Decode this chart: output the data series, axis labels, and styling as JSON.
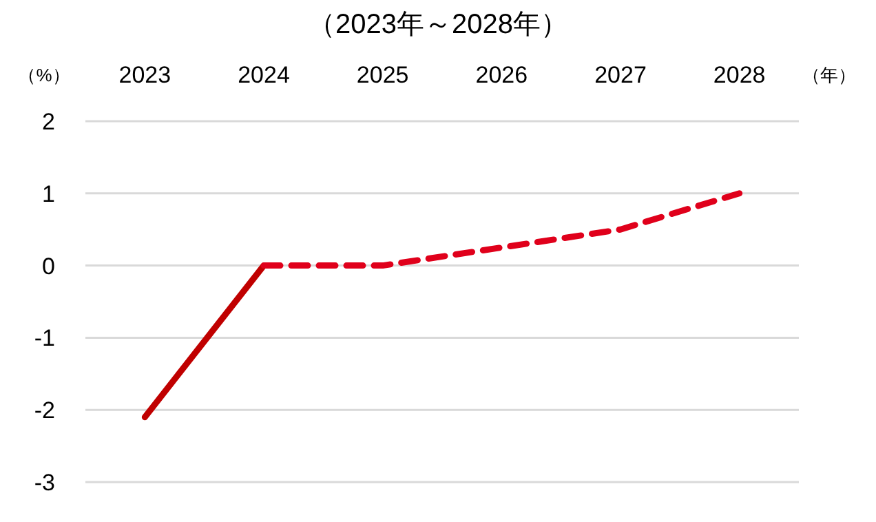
{
  "chart_data": {
    "type": "line",
    "title": "（2023年～2028年）",
    "ylabel": "（%）",
    "xlabel": "（年）",
    "categories": [
      "2023",
      "2024",
      "2025",
      "2026",
      "2027",
      "2028"
    ],
    "series": [
      {
        "color": "#c00000",
        "line_style": "solid",
        "values": [
          -2.1,
          0,
          null,
          null,
          null,
          null
        ]
      },
      {
        "color": "#e0001b",
        "line_style": "dashed",
        "values": [
          null,
          0,
          0,
          0.25,
          0.5,
          1.0
        ]
      }
    ],
    "ylim": [
      -3,
      2
    ],
    "yticks": [
      -3,
      -2,
      -1,
      0,
      1,
      2
    ],
    "grid": "y"
  }
}
